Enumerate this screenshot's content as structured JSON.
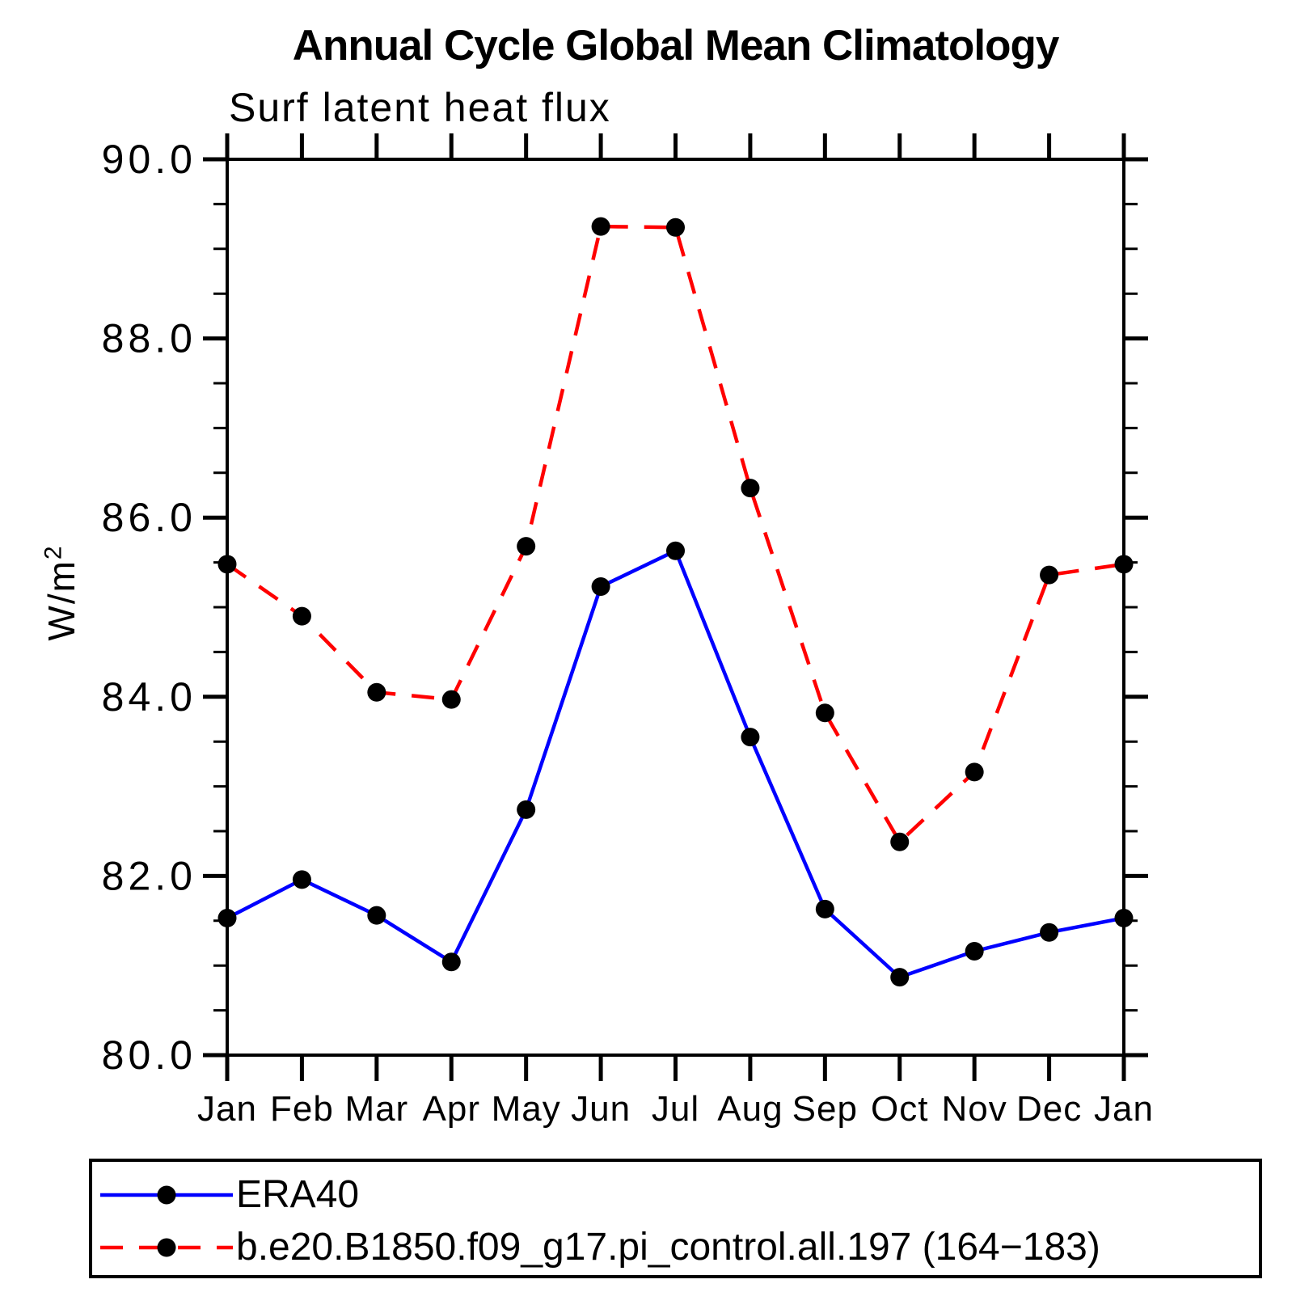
{
  "page": {
    "background": "#ffffff",
    "text_color": "#000000"
  },
  "chart_data": {
    "type": "line",
    "title": "Annual Cycle Global Mean Climatology",
    "subtitle": "Surf latent heat flux",
    "ylabel": "W/m²",
    "ylabel_parts": {
      "base": "W/m",
      "sup": "2"
    },
    "xlabel": "",
    "categories": [
      "Jan",
      "Feb",
      "Mar",
      "Apr",
      "May",
      "Jun",
      "Jul",
      "Aug",
      "Sep",
      "Oct",
      "Nov",
      "Dec",
      "Jan"
    ],
    "ylim": [
      80.0,
      90.0
    ],
    "ytick_major": [
      80.0,
      82.0,
      84.0,
      86.0,
      88.0,
      90.0
    ],
    "ytick_labels": [
      "80.0",
      "82.0",
      "84.0",
      "86.0",
      "88.0",
      "90.0"
    ],
    "ytick_minor_step": 0.5,
    "grid": false,
    "legend_position": "bottom",
    "axis_color": "#000000",
    "series": [
      {
        "name": "ERA40",
        "color": "#0000ff",
        "style": "solid",
        "marker": "circle",
        "marker_color": "#000000",
        "values": [
          81.53,
          81.96,
          81.56,
          81.04,
          82.74,
          85.23,
          85.63,
          83.55,
          81.63,
          80.87,
          81.16,
          81.37,
          81.53
        ]
      },
      {
        "name": "b.e20.B1850.f09_g17.pi_control.all.197 (164−183)",
        "color": "#ff0000",
        "style": "dashed",
        "marker": "circle",
        "marker_color": "#000000",
        "values": [
          85.48,
          84.9,
          84.05,
          83.97,
          85.68,
          89.25,
          89.24,
          86.33,
          83.82,
          82.38,
          83.16,
          85.36,
          85.48
        ]
      }
    ]
  }
}
